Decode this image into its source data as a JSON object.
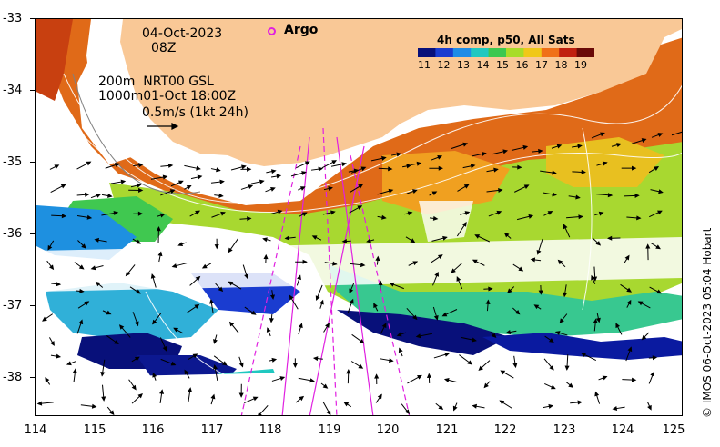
{
  "header": {
    "date": "04-Oct-2023",
    "hour": "08Z",
    "depth_line1": "200m  NRT00 GSL",
    "depth_line2": "1000m01-Oct 18:00Z",
    "scale_label": "0.5m/s (1kt 24h)"
  },
  "legend": {
    "argo_label": "Argo",
    "argo_color": "#e020e0",
    "colorbar_title": "4h comp, p50, All Sats",
    "colorbar_ticks": [
      "11",
      "12",
      "13",
      "14",
      "15",
      "16",
      "17",
      "18",
      "19"
    ],
    "colorbar_colors": [
      "#08107a",
      "#1a3cd0",
      "#1e8ce6",
      "#20c8c0",
      "#3cc850",
      "#a8dc28",
      "#f0c818",
      "#f07018",
      "#c02010",
      "#6a0a08"
    ]
  },
  "credit": "© IMOS 06-Oct-2023 05:04 Hobart",
  "axes": {
    "y_ticks": [
      "-33",
      "-34",
      "-35",
      "-36",
      "-37",
      "-38"
    ],
    "x_ticks": [
      "114",
      "115",
      "116",
      "117",
      "118",
      "119",
      "120",
      "121",
      "122",
      "123",
      "124",
      "125"
    ]
  },
  "map": {
    "land_color": "#f9c896",
    "lon_range": [
      114,
      125
    ],
    "lat_range": [
      -38.5,
      -33
    ]
  }
}
